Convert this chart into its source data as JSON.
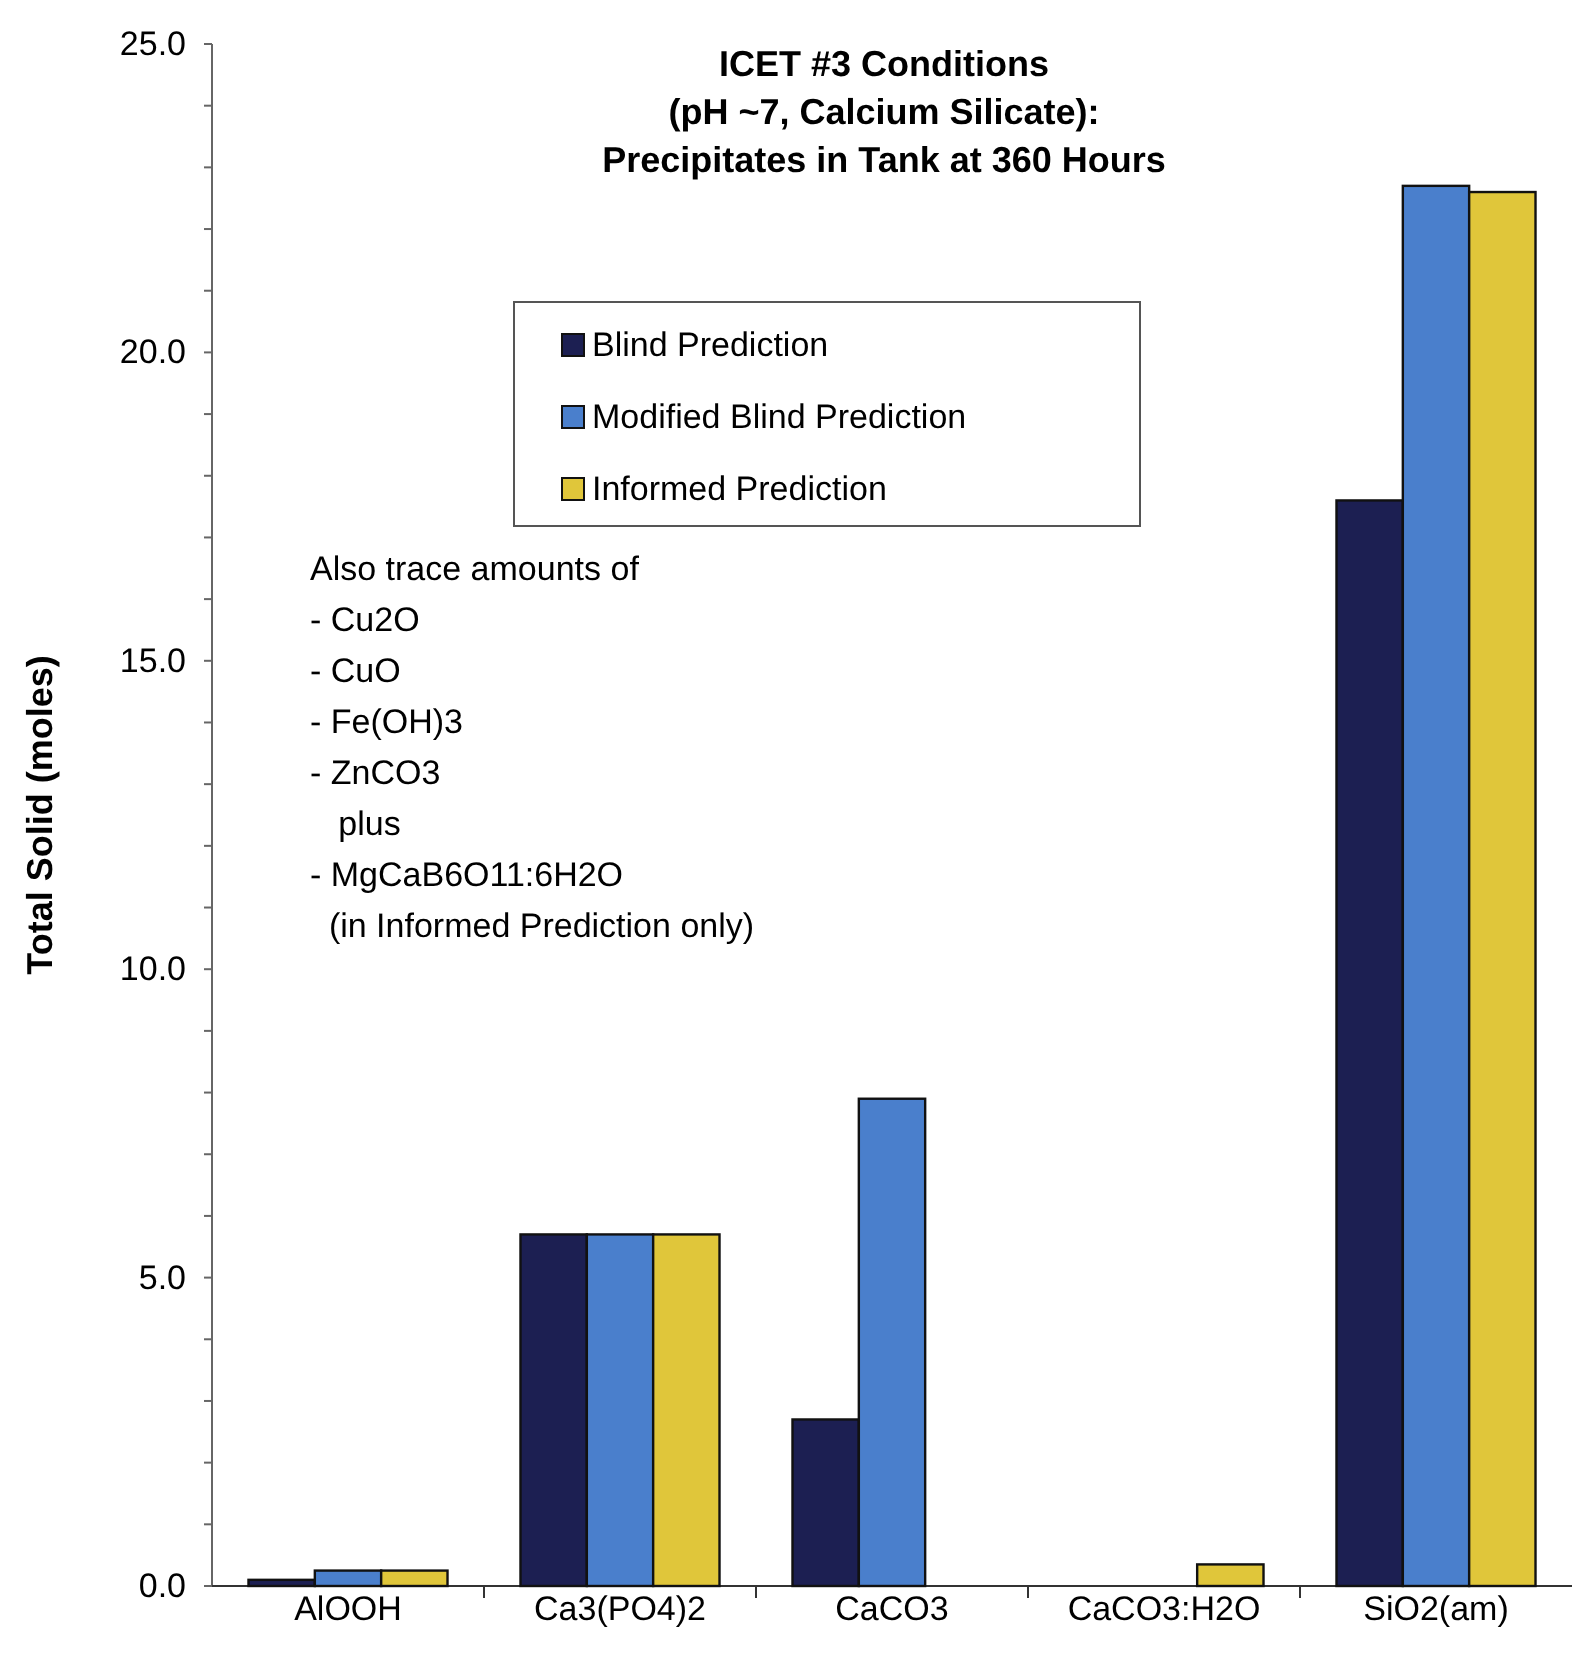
{
  "chart_data": {
    "type": "bar",
    "title": "ICET #3 Conditions\n(pH ~7, Calcium Silicate):\nPrecipitates in Tank at 360 Hours",
    "ylabel": "Total Solid (moles)",
    "categories": [
      "AlOOH",
      "Ca3(PO4)2",
      "CaCO3",
      "CaCO3:H2O",
      "SiO2(am)"
    ],
    "series": [
      {
        "name": "Blind Prediction",
        "color": "#1c1f52",
        "values": [
          0.1,
          5.7,
          2.7,
          0,
          17.6
        ]
      },
      {
        "name": "Modified Blind Prediction",
        "color": "#4a7fcc",
        "values": [
          0.25,
          5.7,
          7.9,
          0,
          22.7
        ]
      },
      {
        "name": "Informed Prediction",
        "color": "#e0c63a",
        "values": [
          0.25,
          5.7,
          0,
          0.35,
          22.6
        ]
      }
    ],
    "ylim": [
      0,
      25
    ],
    "yticks": [
      {
        "value": 0,
        "label": "0.0"
      },
      {
        "value": 1,
        "label": null
      },
      {
        "value": 2,
        "label": null
      },
      {
        "value": 3,
        "label": null
      },
      {
        "value": 4,
        "label": null
      },
      {
        "value": 5,
        "label": "5.0"
      },
      {
        "value": 6,
        "label": null
      },
      {
        "value": 7,
        "label": null
      },
      {
        "value": 8,
        "label": null
      },
      {
        "value": 9,
        "label": null
      },
      {
        "value": 10,
        "label": "10.0"
      },
      {
        "value": 11,
        "label": null
      },
      {
        "value": 12,
        "label": null
      },
      {
        "value": 13,
        "label": null
      },
      {
        "value": 14,
        "label": null
      },
      {
        "value": 15,
        "label": "15.0"
      },
      {
        "value": 16,
        "label": null
      },
      {
        "value": 17,
        "label": null
      },
      {
        "value": 18,
        "label": null
      },
      {
        "value": 19,
        "label": null
      },
      {
        "value": 20,
        "label": "20.0"
      },
      {
        "value": 21,
        "label": null
      },
      {
        "value": 22,
        "label": null
      },
      {
        "value": 23,
        "label": null
      },
      {
        "value": 24,
        "label": null
      },
      {
        "value": 25,
        "label": "25.0"
      }
    ],
    "grid": false,
    "legend": "top",
    "annotations": [
      "Also trace amounts of\n- Cu2O\n- CuO\n- Fe(OH)3\n- ZnCO3\n   plus\n- MgCaB6O11:6H2O\n  (in Informed Prediction only)"
    ]
  }
}
